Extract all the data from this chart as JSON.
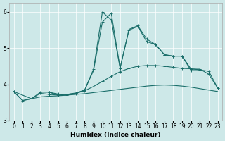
{
  "xlabel": "Humidex (Indice chaleur)",
  "background_color": "#cde8e8",
  "line_color": "#1a6e6a",
  "xlim": [
    -0.5,
    23.5
  ],
  "ylim": [
    3.0,
    6.25
  ],
  "yticks": [
    3,
    4,
    5,
    6
  ],
  "xticks": [
    0,
    1,
    2,
    3,
    4,
    5,
    6,
    7,
    8,
    9,
    10,
    11,
    12,
    13,
    14,
    15,
    16,
    17,
    18,
    19,
    20,
    21,
    22,
    23
  ],
  "line1_x": [
    0,
    1,
    2,
    3,
    4,
    5,
    6,
    7,
    8,
    9,
    10,
    11,
    12,
    13,
    14,
    15,
    16,
    17,
    18,
    19,
    20,
    21,
    22,
    23
  ],
  "line1_y": [
    3.8,
    3.55,
    3.6,
    3.65,
    3.67,
    3.68,
    3.7,
    3.72,
    3.74,
    3.77,
    3.8,
    3.83,
    3.86,
    3.89,
    3.92,
    3.95,
    3.97,
    3.98,
    3.97,
    3.95,
    3.92,
    3.88,
    3.84,
    3.8
  ],
  "line2_x": [
    0,
    1,
    2,
    3,
    4,
    5,
    6,
    7,
    8,
    9,
    10,
    11,
    12,
    13,
    14,
    15,
    16,
    17,
    18,
    19,
    20,
    21,
    22,
    23
  ],
  "line2_y": [
    3.8,
    3.55,
    3.6,
    3.75,
    3.72,
    3.7,
    3.72,
    3.75,
    3.82,
    3.94,
    4.08,
    4.22,
    4.35,
    4.44,
    4.5,
    4.52,
    4.52,
    4.5,
    4.47,
    4.44,
    4.43,
    4.4,
    4.36,
    3.9
  ],
  "line3_x": [
    0,
    2,
    3,
    4,
    5,
    6,
    7,
    8,
    9,
    10,
    11,
    12,
    13,
    14,
    15,
    16,
    17,
    18,
    19,
    20,
    21,
    22,
    23
  ],
  "line3_y": [
    3.8,
    3.6,
    3.78,
    3.78,
    3.73,
    3.72,
    3.76,
    3.84,
    4.38,
    5.72,
    5.97,
    4.45,
    5.52,
    5.62,
    5.25,
    5.1,
    4.82,
    4.78,
    4.78,
    4.42,
    4.42,
    4.28,
    3.9
  ],
  "line4_x": [
    4,
    5,
    6,
    7,
    8,
    9,
    10,
    11,
    12,
    13,
    14,
    15,
    16,
    17,
    18,
    19,
    20,
    21
  ],
  "line4_y": [
    3.78,
    3.7,
    3.7,
    3.74,
    3.84,
    4.42,
    6.0,
    5.78,
    4.45,
    5.5,
    5.6,
    5.18,
    5.1,
    4.82,
    4.78,
    4.78,
    4.38,
    4.38
  ]
}
